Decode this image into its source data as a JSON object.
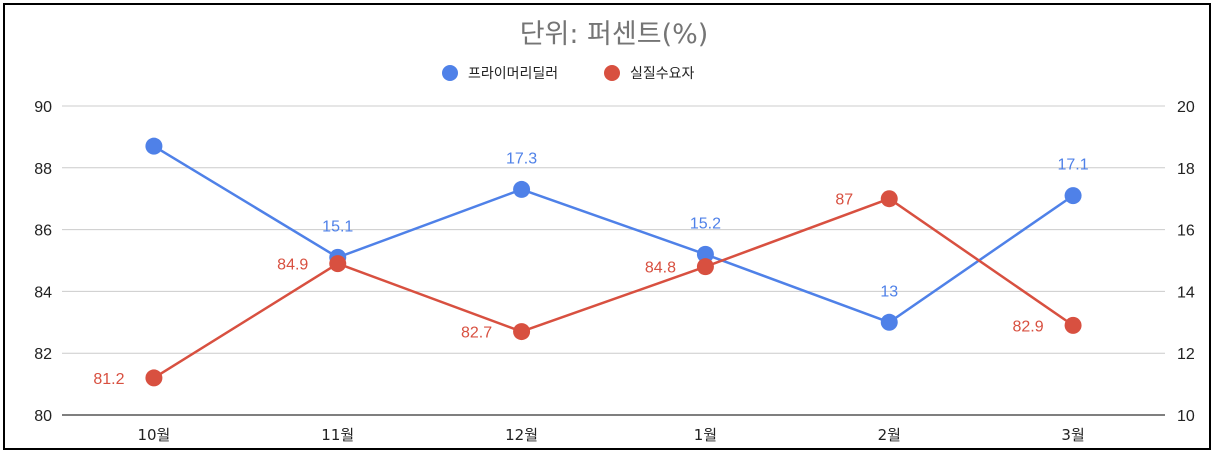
{
  "chart_data": {
    "type": "line",
    "title": "단위: 퍼센트(%)",
    "categories": [
      "10월",
      "11월",
      "12월",
      "1월",
      "2월",
      "3월"
    ],
    "left_axis": {
      "ylim": [
        80,
        90
      ],
      "ticks": [
        "80",
        "82",
        "84",
        "86",
        "88",
        "90"
      ]
    },
    "right_axis": {
      "ylim": [
        10,
        20
      ],
      "ticks": [
        "10",
        "12",
        "14",
        "16",
        "18",
        "20"
      ]
    },
    "legend_position": "top",
    "grid": true,
    "series": [
      {
        "name": "프라이머리딜러",
        "axis": "right",
        "color": "#4f81e8",
        "values": [
          18.7,
          15.1,
          17.3,
          15.2,
          13,
          17.1
        ],
        "labels": [
          "",
          "15.1",
          "17.3",
          "15.2",
          "13",
          "17.1"
        ]
      },
      {
        "name": "실질수요자",
        "axis": "left",
        "color": "#d85040",
        "values": [
          81.2,
          84.9,
          82.7,
          84.8,
          87,
          82.9
        ],
        "labels": [
          "81.2",
          "84.9",
          "82.7",
          "84.8",
          "87",
          "82.9"
        ]
      }
    ]
  }
}
